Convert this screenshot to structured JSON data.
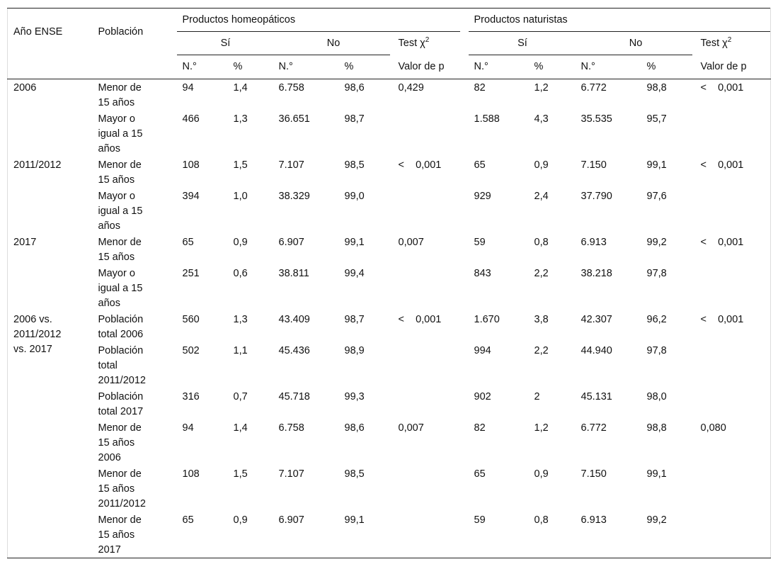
{
  "header": {
    "year": "Año ENSE",
    "population": "Población",
    "homeo": "Productos homeopáticos",
    "nat": "Productos naturistas",
    "yes": "Sí",
    "no": "No",
    "test": {
      "text": "Test χ",
      "sup": "2"
    },
    "n": "N.°",
    "pct": "%",
    "pvalue": "Valor de p"
  },
  "table": {
    "groups": [
      {
        "year": "2006",
        "rows": [
          {
            "population": "Menor de 15 años",
            "homeo": [
              "94",
              "1,4",
              "6.758",
              "98,6"
            ],
            "p_homeo": "0,429",
            "nat": [
              "82",
              "1,2",
              "6.772",
              "98,8"
            ],
            "p_nat": "<    0,001"
          },
          {
            "population": "Mayor o igual a 15 años",
            "homeo": [
              "466",
              "1,3",
              "36.651",
              "98,7"
            ],
            "nat": [
              "1.588",
              "4,3",
              "35.535",
              "95,7"
            ]
          }
        ]
      },
      {
        "year": "2011/2012",
        "rows": [
          {
            "population": "Menor de 15 años",
            "homeo": [
              "108",
              "1,5",
              "7.107",
              "98,5"
            ],
            "p_homeo": "<    0,001",
            "nat": [
              "65",
              "0,9",
              "7.150",
              "99,1"
            ],
            "p_nat": "<    0,001"
          },
          {
            "population": "Mayor o igual a 15 años",
            "homeo": [
              "394",
              "1,0",
              "38.329",
              "99,0"
            ],
            "nat": [
              "929",
              "2,4",
              "37.790",
              "97,6"
            ]
          }
        ]
      },
      {
        "year": "2017",
        "rows": [
          {
            "population": "Menor de 15 años",
            "homeo": [
              "65",
              "0,9",
              "6.907",
              "99,1"
            ],
            "p_homeo": "0,007",
            "nat": [
              "59",
              "0,8",
              "6.913",
              "99,2"
            ],
            "p_nat": "<    0,001"
          },
          {
            "population": "Mayor o igual a 15 años",
            "homeo": [
              "251",
              "0,6",
              "38.811",
              "99,4"
            ],
            "nat": [
              "843",
              "2,2",
              "38.218",
              "97,8"
            ]
          }
        ]
      },
      {
        "year": "2006 vs. 2011/2012 vs. 2017",
        "rows": [
          {
            "population": "Población total 2006",
            "homeo": [
              "560",
              "1,3",
              "43.409",
              "98,7"
            ],
            "p_homeo": "<    0,001",
            "nat": [
              "1.670",
              "3,8",
              "42.307",
              "96,2"
            ],
            "p_nat": "<    0,001"
          },
          {
            "population": "Población total 2011/2012",
            "homeo": [
              "502",
              "1,1",
              "45.436",
              "98,9"
            ],
            "nat": [
              "994",
              "2,2",
              "44.940",
              "97,8"
            ]
          },
          {
            "population": "Población total 2017",
            "homeo": [
              "316",
              "0,7",
              "45.718",
              "99,3"
            ],
            "nat": [
              "902",
              "2",
              "45.131",
              "98,0"
            ]
          },
          {
            "population": "Menor de 15 años 2006",
            "homeo": [
              "94",
              "1,4",
              "6.758",
              "98,6"
            ],
            "p_homeo": "0,007",
            "nat": [
              "82",
              "1,2",
              "6.772",
              "98,8"
            ],
            "p_nat": "0,080"
          },
          {
            "population": "Menor de 15 años 2011/2012",
            "homeo": [
              "108",
              "1,5",
              "7.107",
              "98,5"
            ],
            "nat": [
              "65",
              "0,9",
              "7.150",
              "99,1"
            ]
          },
          {
            "population": "Menor de 15 años 2017",
            "homeo": [
              "65",
              "0,9",
              "6.907",
              "99,1"
            ],
            "nat": [
              "59",
              "0,8",
              "6.913",
              "99,2"
            ]
          }
        ]
      }
    ]
  }
}
